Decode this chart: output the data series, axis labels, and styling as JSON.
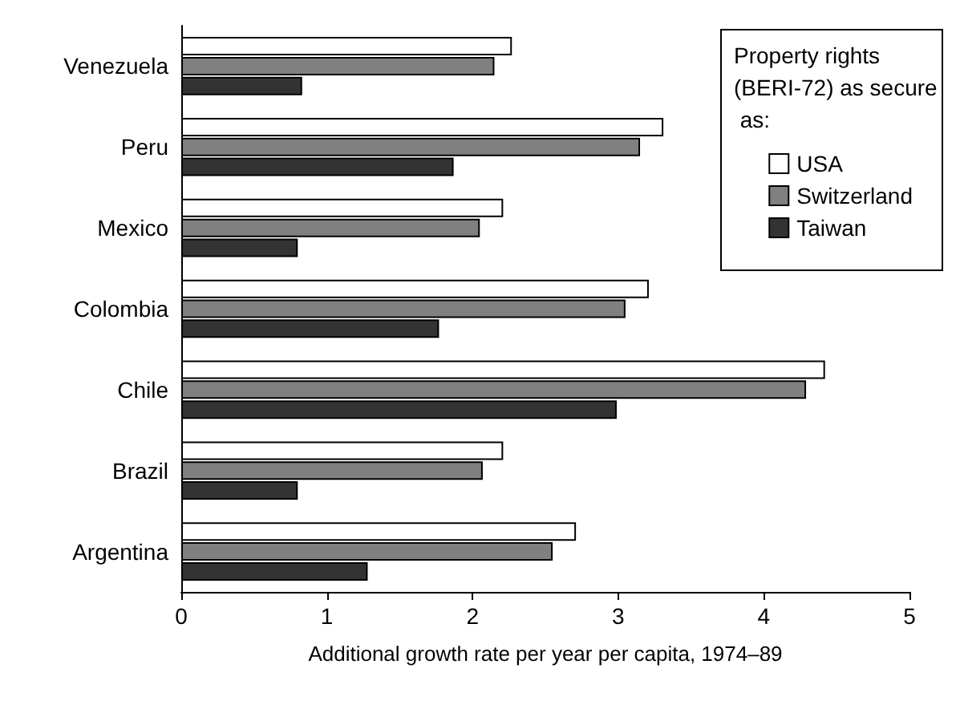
{
  "chart_data": {
    "type": "bar",
    "orientation": "horizontal",
    "xlabel": "Additional growth rate per year per capita, 1974–89",
    "legend_title": "Property rights (BERI-72) as secure as:",
    "categories": [
      "Venezuela",
      "Peru",
      "Mexico",
      "Colombia",
      "Chile",
      "Brazil",
      "Argentina"
    ],
    "series": [
      {
        "name": "USA",
        "color": "#ffffff",
        "values": [
          2.27,
          3.31,
          2.21,
          3.21,
          4.42,
          2.21,
          2.71
        ]
      },
      {
        "name": "Switzerland",
        "color": "#808080",
        "values": [
          2.15,
          3.15,
          2.05,
          3.05,
          4.29,
          2.07,
          2.55
        ]
      },
      {
        "name": "Taiwan",
        "color": "#333333",
        "values": [
          0.83,
          1.87,
          0.8,
          1.77,
          2.99,
          0.8,
          1.28
        ]
      }
    ],
    "xlim": [
      0,
      5
    ],
    "xticks": [
      0,
      1,
      2,
      3,
      4,
      5
    ],
    "grid": false,
    "legend": "top right"
  }
}
